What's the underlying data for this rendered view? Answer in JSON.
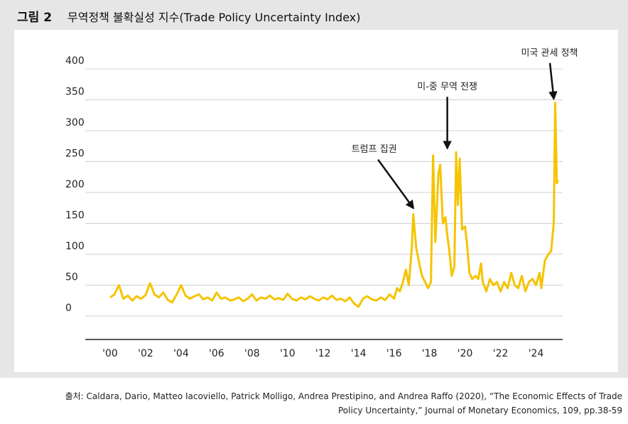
{
  "figure_label": "그림 2",
  "source": "출처: Caldara, Dario, Matteo Iacoviello, Patrick Molligo, Andrea Prestipino, and Andrea Raffo (2020), “The Economic Effects of Trade Policy Uncertainty,” Journal of Monetary Economics, 109, pp.38-59",
  "chart_data": {
    "type": "line",
    "title": "무역정책 불확실성 지수(Trade Policy Uncertainty Index)",
    "color": "#f5c400",
    "grid": true,
    "xlim": [
      1998.6,
      2025.5
    ],
    "xticks": [
      {
        "value": 2000,
        "label": "'00"
      },
      {
        "value": 2002,
        "label": "'02"
      },
      {
        "value": 2004,
        "label": "'04"
      },
      {
        "value": 2006,
        "label": "'06"
      },
      {
        "value": 2008,
        "label": "'08"
      },
      {
        "value": 2010,
        "label": "'10"
      },
      {
        "value": 2012,
        "label": "'12"
      },
      {
        "value": 2014,
        "label": "'14"
      },
      {
        "value": 2016,
        "label": "'16"
      },
      {
        "value": 2018,
        "label": "'18"
      },
      {
        "value": 2020,
        "label": "'20"
      },
      {
        "value": 2022,
        "label": "'22"
      },
      {
        "value": 2024,
        "label": "'24"
      }
    ],
    "ylim": [
      -38,
      400
    ],
    "yticks": [
      0,
      50,
      100,
      150,
      200,
      250,
      300,
      350,
      400
    ],
    "x": [
      2000,
      2000.25,
      2000.5,
      2000.75,
      2001,
      2001.25,
      2001.5,
      2001.75,
      2002,
      2002.25,
      2002.5,
      2002.75,
      2003,
      2003.25,
      2003.5,
      2003.75,
      2004,
      2004.25,
      2004.5,
      2004.75,
      2005,
      2005.25,
      2005.5,
      2005.75,
      2006,
      2006.25,
      2006.5,
      2006.75,
      2007,
      2007.25,
      2007.5,
      2007.75,
      2008,
      2008.25,
      2008.5,
      2008.75,
      2009,
      2009.25,
      2009.5,
      2009.75,
      2010,
      2010.25,
      2010.5,
      2010.75,
      2011,
      2011.25,
      2011.5,
      2011.75,
      2012,
      2012.25,
      2012.5,
      2012.75,
      2013,
      2013.25,
      2013.5,
      2013.75,
      2014,
      2014.25,
      2014.5,
      2014.75,
      2015,
      2015.25,
      2015.5,
      2015.75,
      2016,
      2016.17,
      2016.33,
      2016.5,
      2016.67,
      2016.83,
      2017,
      2017.08,
      2017.25,
      2017.42,
      2017.58,
      2017.75,
      2017.92,
      2018.08,
      2018.2,
      2018.33,
      2018.5,
      2018.6,
      2018.75,
      2018.9,
      2019,
      2019.1,
      2019.25,
      2019.4,
      2019.5,
      2019.6,
      2019.7,
      2019.83,
      2020,
      2020.1,
      2020.25,
      2020.4,
      2020.6,
      2020.75,
      2020.9,
      2021,
      2021.2,
      2021.4,
      2021.6,
      2021.8,
      2022,
      2022.2,
      2022.4,
      2022.6,
      2022.8,
      2023,
      2023.2,
      2023.4,
      2023.6,
      2023.8,
      2024,
      2024.2,
      2024.3,
      2024.5,
      2024.7,
      2024.85,
      2025,
      2025.08,
      2025.17,
      2025.25
    ],
    "values": [
      30,
      35,
      50,
      28,
      33,
      25,
      32,
      28,
      34,
      53,
      35,
      30,
      38,
      26,
      22,
      35,
      50,
      33,
      28,
      32,
      35,
      27,
      30,
      25,
      38,
      28,
      30,
      25,
      27,
      30,
      24,
      28,
      35,
      25,
      30,
      28,
      33,
      27,
      29,
      26,
      36,
      28,
      25,
      30,
      27,
      32,
      28,
      25,
      30,
      27,
      33,
      26,
      28,
      24,
      30,
      20,
      15,
      28,
      32,
      27,
      25,
      30,
      26,
      35,
      28,
      45,
      40,
      55,
      75,
      50,
      110,
      165,
      110,
      85,
      65,
      55,
      45,
      55,
      260,
      120,
      230,
      245,
      150,
      160,
      130,
      110,
      65,
      80,
      265,
      180,
      255,
      140,
      145,
      120,
      70,
      60,
      65,
      60,
      85,
      55,
      40,
      60,
      50,
      55,
      40,
      55,
      45,
      70,
      50,
      45,
      65,
      40,
      55,
      60,
      50,
      70,
      45,
      90,
      100,
      105,
      150,
      345,
      215,
      220
    ],
    "annotations": [
      {
        "text": "트럼프 집권",
        "x": 2017.08,
        "y": 175
      },
      {
        "text": "미-중 무역 전쟁",
        "x": 2019.0,
        "y": 272
      },
      {
        "text": "미국 관세 정책",
        "x": 2025.0,
        "y": 352
      }
    ]
  }
}
